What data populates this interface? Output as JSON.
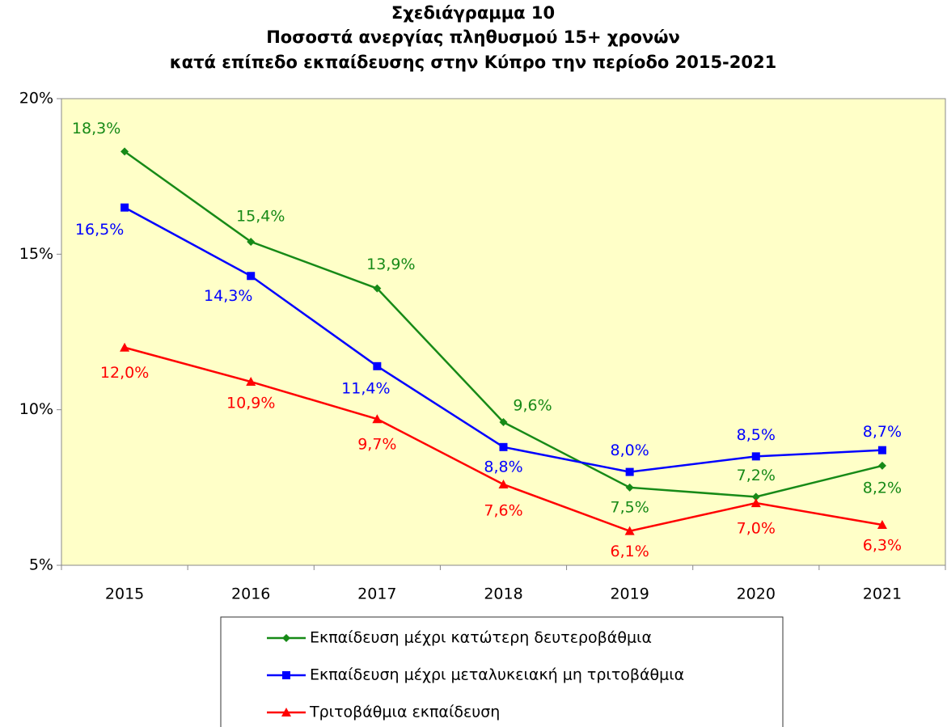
{
  "chart_data": {
    "type": "line",
    "title": [
      "Σχεδιάγραμμα 10",
      "Ποσοστά ανεργίας πληθυσμού 15+ χρονών",
      "κατά επίπεδο εκπαίδευσης στην Κύπρο την περίοδο 2015-2021"
    ],
    "categories": [
      "2015",
      "2016",
      "2017",
      "2018",
      "2019",
      "2020",
      "2021"
    ],
    "series": [
      {
        "name": "Εκπαίδευση μέχρι κατώτερη δευτεροβάθμια",
        "color": "#178a17",
        "marker": "diamond",
        "values": [
          18.3,
          15.4,
          13.9,
          9.6,
          7.5,
          7.2,
          8.2
        ],
        "value_labels": [
          "18,3%",
          "15,4%",
          "13,9%",
          "9,6%",
          "7,5%",
          "7,2%",
          "8,2%"
        ]
      },
      {
        "name": "Εκπαίδευση μέχρι μεταλυκειακή μη τριτοβάθμια",
        "color": "#0000ff",
        "marker": "square",
        "values": [
          16.5,
          14.3,
          11.4,
          8.8,
          8.0,
          8.5,
          8.7
        ],
        "value_labels": [
          "16,5%",
          "14,3%",
          "11,4%",
          "8,8%",
          "8,0%",
          "8,5%",
          "8,7%"
        ]
      },
      {
        "name": "Τριτοβάθμια εκπαίδευση",
        "color": "#ff0000",
        "marker": "triangle",
        "values": [
          12.0,
          10.9,
          9.7,
          7.6,
          6.1,
          7.0,
          6.3
        ],
        "value_labels": [
          "12,0%",
          "10,9%",
          "9,7%",
          "7,6%",
          "6,1%",
          "7,0%",
          "6,3%"
        ]
      }
    ],
    "ylim": [
      5,
      20
    ],
    "yticks": [
      {
        "value": 5,
        "label": "5%"
      },
      {
        "value": 10,
        "label": "10%"
      },
      {
        "value": 15,
        "label": "15%"
      },
      {
        "value": 20,
        "label": "20%"
      }
    ],
    "plot_background": "#ffffc8",
    "legend": "bottom"
  }
}
